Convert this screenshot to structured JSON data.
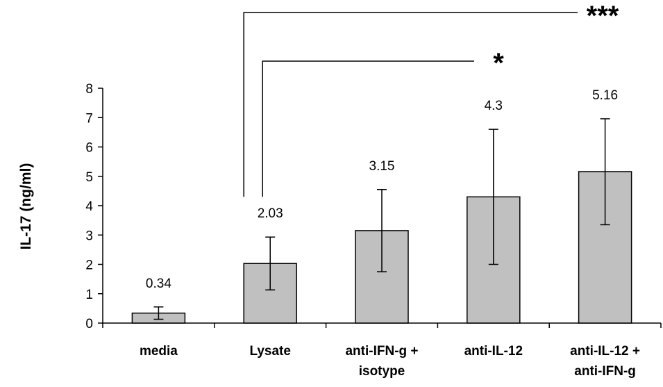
{
  "chart_data": {
    "type": "bar",
    "title": "",
    "xlabel": "",
    "ylabel": "IL-17 (ng/ml)",
    "ylim": [
      0,
      8
    ],
    "yticks": [
      "0",
      "1",
      "2",
      "3",
      "4",
      "5",
      "6",
      "7",
      "8"
    ],
    "grid": false,
    "categories": [
      [
        "media"
      ],
      [
        "Lysate"
      ],
      [
        "anti-IFN-g +",
        "isotype"
      ],
      [
        "anti-IL-12"
      ],
      [
        "anti-IL-12 +",
        "anti-IFN-g"
      ]
    ],
    "values": [
      0.34,
      2.03,
      3.15,
      4.3,
      5.16
    ],
    "value_labels": [
      "0.34",
      "2.03",
      "3.15",
      "4.3",
      "5.16"
    ],
    "error_low": [
      0.13,
      1.13,
      1.75,
      2.0,
      3.35
    ],
    "error_high": [
      0.55,
      2.93,
      4.55,
      6.6,
      6.96
    ],
    "bar_color": "#c0c0c0",
    "significance": [
      {
        "from": "Lysate",
        "to": "anti-IL-12 + anti-IFN-g",
        "label": "***"
      },
      {
        "from": "Lysate",
        "to": "anti-IL-12",
        "label": "*"
      }
    ]
  }
}
